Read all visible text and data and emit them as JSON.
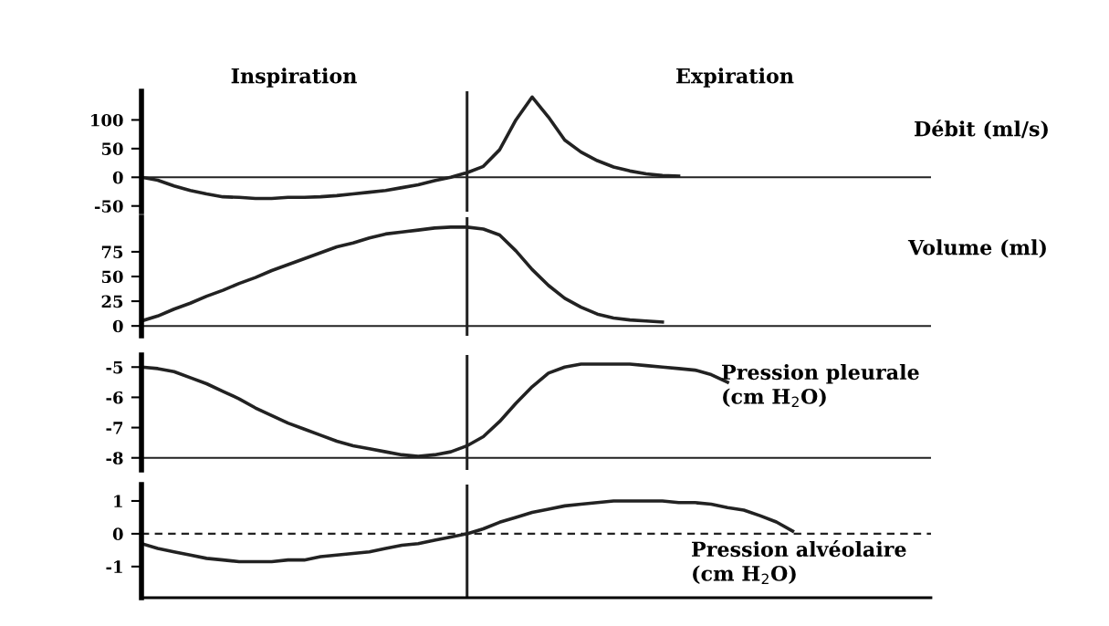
{
  "chart_data": [
    {
      "type": "line",
      "categories": [
        null,
        null,
        null,
        null,
        null,
        null,
        null,
        null,
        null,
        null,
        null,
        null,
        null,
        null,
        null,
        null,
        null,
        null,
        null,
        null,
        null,
        null,
        null,
        null,
        null,
        null,
        null,
        null,
        null,
        null,
        null,
        null,
        null,
        null,
        null,
        null,
        null,
        null,
        null,
        null,
        null,
        null,
        null,
        null,
        null,
        null,
        null,
        null,
        null
      ],
      "values": [
        0,
        -5,
        -15,
        -23,
        -29,
        -34,
        -35,
        -37,
        -37,
        -35,
        -35,
        -34,
        -32,
        -29,
        -26,
        -23,
        -18,
        -13,
        -6,
        0,
        8,
        19,
        48,
        100,
        140,
        105,
        65,
        44,
        29,
        18,
        11,
        6,
        3,
        2,
        null,
        null,
        null,
        null,
        null,
        null,
        null,
        null,
        null,
        null,
        null,
        null,
        null,
        null,
        null
      ],
      "color": "#222222",
      "ylim": [
        -60,
        150
      ],
      "yticks": [
        100,
        50,
        0,
        -50
      ],
      "tick_labels": "y",
      "grid": false,
      "legend": false,
      "marker": "none",
      "line_style": "solid",
      "ref_lines": [
        {
          "axis": "y",
          "value": 0,
          "color": "#222222",
          "line_style": "solid"
        }
      ],
      "annotations": [
        "Inspiration",
        "Expiration",
        "Débit (ml/s)"
      ]
    },
    {
      "type": "line",
      "categories": [
        null,
        null,
        null,
        null,
        null,
        null,
        null,
        null,
        null,
        null,
        null,
        null,
        null,
        null,
        null,
        null,
        null,
        null,
        null,
        null,
        null,
        null,
        null,
        null,
        null,
        null,
        null,
        null,
        null,
        null,
        null,
        null,
        null,
        null,
        null,
        null,
        null,
        null,
        null,
        null,
        null,
        null,
        null,
        null,
        null,
        null,
        null,
        null,
        null
      ],
      "values": [
        5,
        10,
        17,
        23,
        30,
        36,
        43,
        49,
        56,
        62,
        68,
        74,
        80,
        84,
        89,
        93,
        95,
        97,
        99,
        100,
        100,
        98,
        92,
        76,
        57,
        41,
        28,
        19,
        12,
        8,
        6,
        5,
        4,
        null,
        null,
        null,
        null,
        null,
        null,
        null,
        null,
        null,
        null,
        null,
        null,
        null,
        null,
        null,
        null
      ],
      "color": "#222222",
      "ylim": [
        -10,
        110
      ],
      "yticks": [
        75,
        50,
        25,
        0
      ],
      "tick_labels": "y",
      "grid": false,
      "legend": false,
      "marker": "none",
      "line_style": "solid",
      "ref_lines": [
        {
          "axis": "y",
          "value": 0,
          "color": "#222222",
          "line_style": "solid"
        }
      ],
      "annotations": [
        "Volume (ml)"
      ]
    },
    {
      "type": "line",
      "categories": [
        null,
        null,
        null,
        null,
        null,
        null,
        null,
        null,
        null,
        null,
        null,
        null,
        null,
        null,
        null,
        null,
        null,
        null,
        null,
        null,
        null,
        null,
        null,
        null,
        null,
        null,
        null,
        null,
        null,
        null,
        null,
        null,
        null,
        null,
        null,
        null,
        null,
        null,
        null,
        null,
        null,
        null,
        null,
        null,
        null,
        null,
        null,
        null,
        null
      ],
      "values": [
        -5,
        -5.05,
        -5.15,
        -5.35,
        -5.55,
        -5.8,
        -6.05,
        -6.35,
        -6.6,
        -6.85,
        -7.05,
        -7.25,
        -7.45,
        -7.6,
        -7.7,
        -7.8,
        -7.9,
        -7.95,
        -7.9,
        -7.8,
        -7.6,
        -7.3,
        -6.8,
        -6.2,
        -5.65,
        -5.2,
        -5,
        -4.9,
        -4.9,
        -4.9,
        -4.9,
        -4.95,
        -5,
        -5.05,
        -5.1,
        -5.25,
        -5.5,
        null,
        null,
        null,
        null,
        null,
        null,
        null,
        null,
        null,
        null,
        null,
        null
      ],
      "color": "#222222",
      "ylim": [
        -8.4,
        -4.6
      ],
      "yticks": [
        -5,
        -6,
        -7,
        -8
      ],
      "tick_labels": "y",
      "grid": false,
      "legend": false,
      "marker": "none",
      "line_style": "solid",
      "ref_lines": [
        {
          "axis": "y",
          "value": -8,
          "color": "#222222",
          "line_style": "solid"
        }
      ],
      "annotations": [
        "Pression pleurale\n(cm H$_{2}$O)"
      ]
    },
    {
      "type": "line",
      "categories": [
        null,
        null,
        null,
        null,
        null,
        null,
        null,
        null,
        null,
        null,
        null,
        null,
        null,
        null,
        null,
        null,
        null,
        null,
        null,
        null,
        null,
        null,
        null,
        null,
        null,
        null,
        null,
        null,
        null,
        null,
        null,
        null,
        null,
        null,
        null,
        null,
        null,
        null,
        null,
        null,
        null,
        null,
        null,
        null,
        null,
        null,
        null,
        null,
        null
      ],
      "values": [
        -0.3,
        -0.45,
        -0.55,
        -0.65,
        -0.75,
        -0.8,
        -0.85,
        -0.85,
        -0.85,
        -0.8,
        -0.8,
        -0.7,
        -0.65,
        -0.6,
        -0.55,
        -0.45,
        -0.35,
        -0.3,
        -0.2,
        -0.1,
        0,
        0.15,
        0.35,
        0.5,
        0.65,
        0.75,
        0.85,
        0.9,
        0.95,
        1,
        1,
        1,
        1,
        0.95,
        0.95,
        0.9,
        0.8,
        0.72,
        0.55,
        0.36,
        0.08,
        null,
        null,
        null,
        null,
        null,
        null,
        null,
        null
      ],
      "color": "#222222",
      "ylim": [
        -1.95,
        1.5
      ],
      "yticks": [
        1,
        0,
        -1
      ],
      "tick_labels": "y",
      "grid": false,
      "legend": false,
      "marker": "none",
      "line_style": "solid",
      "ref_lines": [
        {
          "axis": "y",
          "value": 0,
          "color": "#222222",
          "line_style": "dashed"
        }
      ],
      "annotations": [
        "Pression alvéolaire\n(cm H$_{2}$O)"
      ]
    }
  ]
}
